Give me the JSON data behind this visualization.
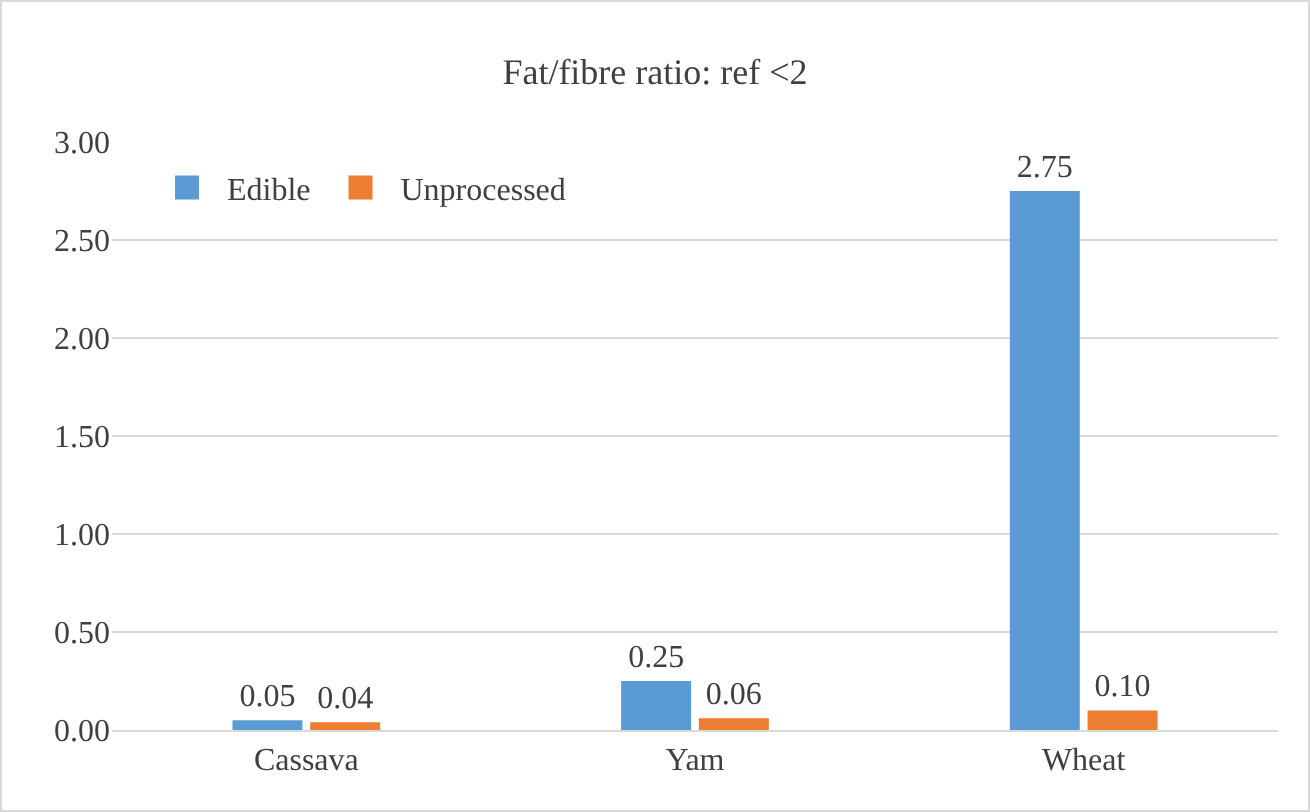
{
  "chart_data": {
    "type": "bar",
    "title": "Fat/fibre ratio: ref <2",
    "categories": [
      "Cassava",
      "Yam",
      "Wheat"
    ],
    "series": [
      {
        "name": "Edible",
        "color": "#5b9bd5",
        "values": [
          0.05,
          0.25,
          2.75
        ],
        "value_labels": [
          "0.05",
          "0.25",
          "2.75"
        ]
      },
      {
        "name": "Unprocessed",
        "color": "#ed7d31",
        "values": [
          0.04,
          0.06,
          0.1
        ],
        "value_labels": [
          "0.04",
          "0.06",
          "0.10"
        ]
      }
    ],
    "ylim": [
      0,
      3
    ],
    "yticks": [
      {
        "value": 0,
        "label": "0.00"
      },
      {
        "value": 0.5,
        "label": "0.50"
      },
      {
        "value": 1,
        "label": "1.00"
      },
      {
        "value": 1.5,
        "label": "1.50"
      },
      {
        "value": 2,
        "label": "2.00"
      },
      {
        "value": 2.5,
        "label": "2.50"
      },
      {
        "value": 3,
        "label": "3.00"
      }
    ],
    "grid": "y",
    "legend": "top left"
  }
}
